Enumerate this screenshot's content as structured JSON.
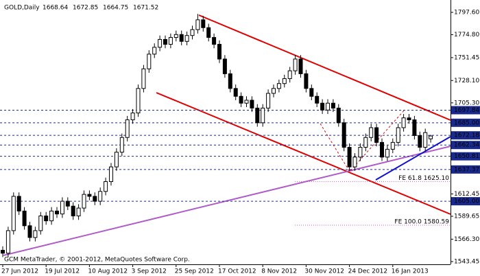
{
  "chart_data": {
    "type": "candlestick",
    "symbol": "GOLD,Daily",
    "header_values": {
      "open": "1668.64",
      "high": "1672.85",
      "low": "1664.75",
      "close": "1671.52"
    },
    "footer": "GCM MetaTrader, © 2001-2012, MetaQuotes Software Corp.",
    "categories": [
      "27 Jun 2012",
      null,
      null,
      null,
      null,
      null,
      null,
      null,
      "19 Jul 2012",
      null,
      null,
      null,
      null,
      null,
      null,
      null,
      "10 Aug 2012",
      null,
      null,
      null,
      null,
      null,
      null,
      null,
      "3 Sep 2012",
      null,
      null,
      null,
      null,
      null,
      null,
      null,
      "25 Sep 2012",
      null,
      null,
      null,
      null,
      null,
      null,
      null,
      "17 Oct 2012",
      null,
      null,
      null,
      null,
      null,
      null,
      null,
      "8 Nov 2012",
      null,
      null,
      null,
      null,
      null,
      null,
      null,
      "30 Nov 2012",
      null,
      null,
      null,
      null,
      null,
      null,
      null,
      "24 Dec 2012",
      null,
      null,
      null,
      null,
      null,
      null,
      null,
      "16 Jan 2013",
      null,
      null,
      null,
      null,
      null,
      null,
      null
    ],
    "open": [
      1555,
      1552,
      1575,
      1610,
      1595,
      1580,
      1568,
      1575,
      1590,
      1585,
      1595,
      1592,
      1605,
      1600,
      1590,
      1598,
      1612,
      1610,
      1605,
      1615,
      1625,
      1640,
      1655,
      1670,
      1688,
      1695,
      1720,
      1740,
      1755,
      1762,
      1770,
      1765,
      1772,
      1775,
      1768,
      1774,
      1780,
      1790,
      1782,
      1772,
      1765,
      1750,
      1735,
      1720,
      1712,
      1705,
      1708,
      1700,
      1685,
      1700,
      1715,
      1720,
      1725,
      1730,
      1738,
      1750,
      1735,
      1720,
      1712,
      1705,
      1698,
      1705,
      1700,
      1685,
      1660,
      1640,
      1650,
      1660,
      1670,
      1680,
      1665,
      1650,
      1658,
      1665,
      1680,
      1690,
      1688,
      1672,
      1660,
      1668.64
    ],
    "high": [
      1559,
      1579,
      1614,
      1614,
      1599,
      1584,
      1579,
      1594,
      1594,
      1599,
      1599,
      1609,
      1609,
      1604,
      1602,
      1616,
      1616,
      1614,
      1619,
      1629,
      1644,
      1659,
      1674,
      1692,
      1699,
      1724,
      1744,
      1759,
      1766,
      1774,
      1774,
      1776,
      1779,
      1779,
      1778,
      1784,
      1796,
      1794,
      1786,
      1776,
      1769,
      1754,
      1739,
      1724,
      1716,
      1712,
      1712,
      1704,
      1704,
      1719,
      1724,
      1729,
      1734,
      1742,
      1754,
      1754,
      1739,
      1724,
      1716,
      1709,
      1709,
      1709,
      1704,
      1689,
      1664,
      1654,
      1664,
      1674,
      1684,
      1684,
      1669,
      1662,
      1669,
      1684,
      1694,
      1694,
      1692,
      1676,
      1679,
      1672.85
    ],
    "low": [
      1548,
      1548,
      1571,
      1591,
      1576,
      1564,
      1564,
      1571,
      1581,
      1581,
      1588,
      1588,
      1596,
      1586,
      1586,
      1594,
      1606,
      1601,
      1601,
      1611,
      1621,
      1636,
      1651,
      1666,
      1684,
      1691,
      1716,
      1736,
      1751,
      1758,
      1761,
      1761,
      1768,
      1764,
      1764,
      1770,
      1776,
      1778,
      1768,
      1761,
      1746,
      1731,
      1716,
      1708,
      1701,
      1701,
      1696,
      1681,
      1681,
      1696,
      1711,
      1716,
      1721,
      1726,
      1734,
      1731,
      1716,
      1708,
      1701,
      1694,
      1694,
      1696,
      1681,
      1656,
      1636,
      1636,
      1646,
      1656,
      1666,
      1661,
      1646,
      1646,
      1654,
      1661,
      1676,
      1684,
      1668,
      1656,
      1656,
      1664.75
    ],
    "close": [
      1552,
      1575,
      1610,
      1595,
      1580,
      1568,
      1575,
      1590,
      1585,
      1595,
      1592,
      1605,
      1600,
      1590,
      1598,
      1612,
      1610,
      1605,
      1615,
      1625,
      1640,
      1655,
      1670,
      1688,
      1695,
      1720,
      1740,
      1755,
      1762,
      1770,
      1765,
      1772,
      1775,
      1768,
      1774,
      1780,
      1790,
      1782,
      1772,
      1765,
      1750,
      1735,
      1720,
      1712,
      1705,
      1708,
      1700,
      1685,
      1700,
      1715,
      1720,
      1725,
      1730,
      1738,
      1750,
      1735,
      1720,
      1712,
      1705,
      1698,
      1705,
      1700,
      1685,
      1660,
      1640,
      1650,
      1660,
      1670,
      1680,
      1665,
      1650,
      1658,
      1665,
      1680,
      1690,
      1688,
      1672,
      1660,
      1675,
      1671.52
    ],
    "ylim": [
      1540.65,
      1810.2
    ],
    "yticks": [
      {
        "value": 1797.6,
        "label": "1797.60"
      },
      {
        "value": 1774.8,
        "label": "1774.80"
      },
      {
        "value": 1751.45,
        "label": "1751.45"
      },
      {
        "value": 1728.1,
        "label": "1728.10"
      },
      {
        "value": 1705.3,
        "label": "1705.30"
      },
      {
        "value": 1612.45,
        "label": "1612.45"
      },
      {
        "value": 1589.65,
        "label": "1589.65"
      },
      {
        "value": 1566.3,
        "label": "1566.30"
      },
      {
        "value": 1543.45,
        "label": "1543.45"
      }
    ],
    "levels": [
      {
        "value": 1697.84,
        "label": "1697.84"
      },
      {
        "value": 1685,
        "label": "1685.00"
      },
      {
        "value": 1672.18,
        "label": "1672.18"
      },
      {
        "value": 1662.34,
        "label": "1662.34"
      },
      {
        "value": 1650.81,
        "label": "1650.81"
      },
      {
        "value": 1637.37,
        "label": "1637.37"
      },
      {
        "value": 1605,
        "label": "1605.00"
      }
    ],
    "fib_levels": [
      {
        "value": 1625.1,
        "label": "FE 61.8 1625.10"
      },
      {
        "value": 1580.59,
        "label": "FE 100.0 1580.59"
      }
    ],
    "up_color": "#ffffff",
    "down_color": "#000000",
    "level_color": "#1a2a8c",
    "fib_color": "#cc55cc"
  }
}
